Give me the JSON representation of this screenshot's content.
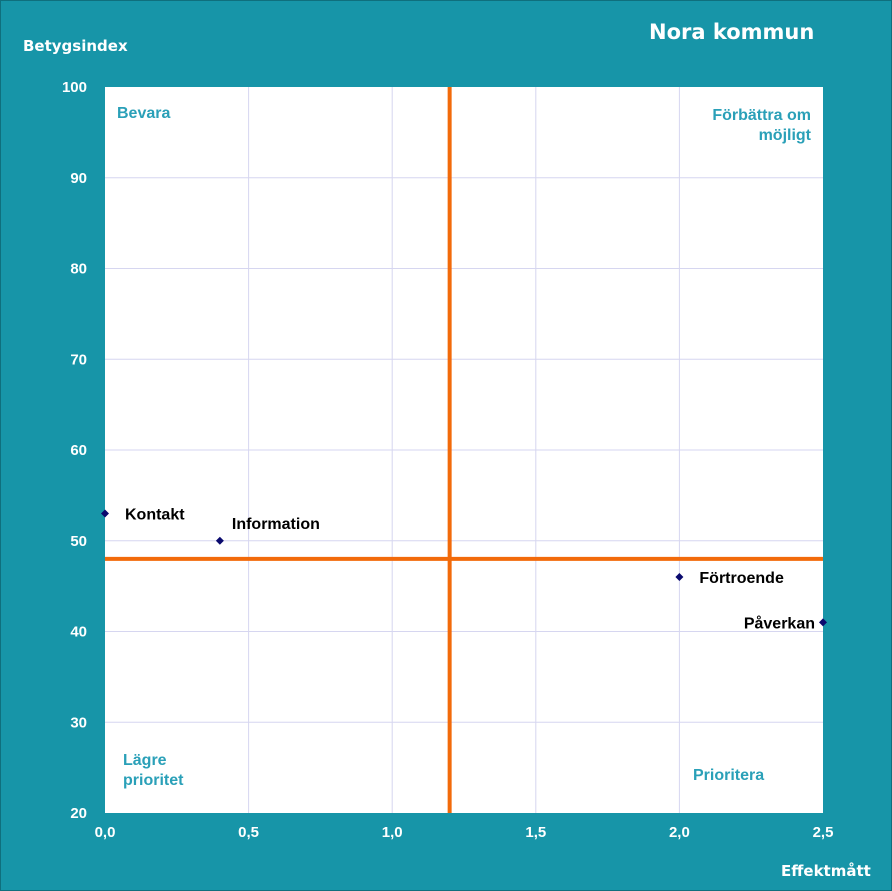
{
  "chart_data": {
    "type": "scatter",
    "title": "Nora kommun",
    "xlabel": "Effektmått",
    "ylabel": "Betygsindex",
    "xlim": [
      0,
      2.5
    ],
    "ylim": [
      20,
      100
    ],
    "x_ticks": [
      "0,0",
      "0,5",
      "1,0",
      "1,5",
      "2,0",
      "2,5"
    ],
    "y_ticks": [
      "20",
      "30",
      "40",
      "50",
      "60",
      "70",
      "80",
      "90",
      "100"
    ],
    "grid": true,
    "points": [
      {
        "label": "Kontakt",
        "x": 0.0,
        "y": 53
      },
      {
        "label": "Information",
        "x": 0.4,
        "y": 50
      },
      {
        "label": "Förtroende",
        "x": 2.0,
        "y": 46
      },
      {
        "label": "Påverkan",
        "x": 2.5,
        "y": 41
      }
    ],
    "reference_lines": {
      "x": 1.2,
      "y": 48
    },
    "quadrants": {
      "top_left": "Bevara",
      "top_right": "Förbättra om möjligt",
      "bottom_left": "Lägre prioritet",
      "bottom_right": "Prioritera"
    },
    "colors": {
      "frame": "#1795a8",
      "reference_line": "#f26a0a",
      "point": "#0a0a6e",
      "quadrant_text": "#2aa0b8",
      "grid": "#d6d6f0"
    }
  }
}
